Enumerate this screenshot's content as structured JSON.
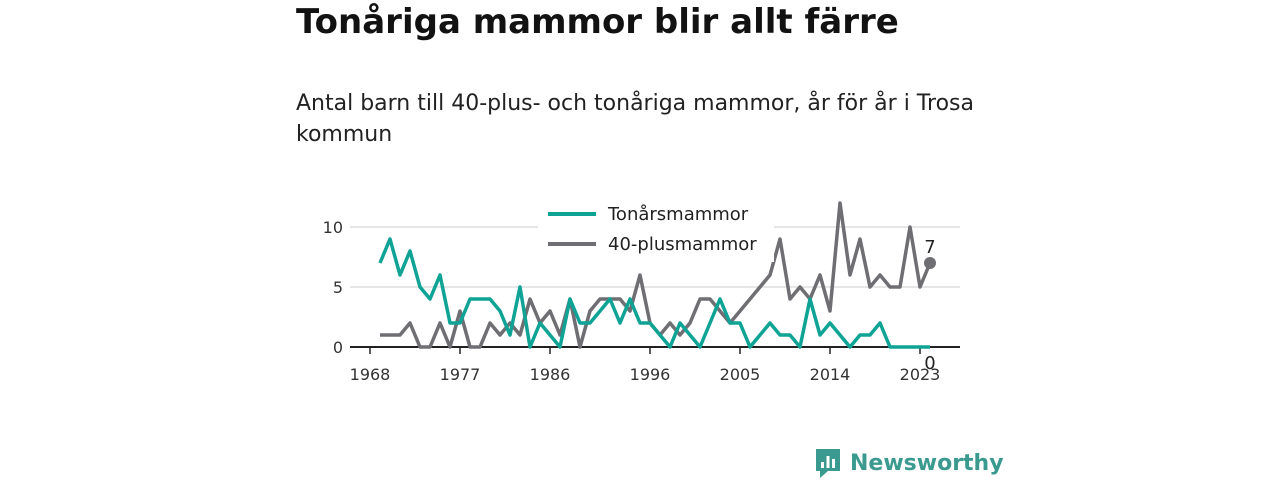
{
  "chart_data": {
    "type": "line",
    "title": "Tonåriga mammor blir allt färre",
    "subtitle": "Antal barn till 40-plus- och tonåriga mammor, år för år i Trosa kommun",
    "xlabel": "",
    "ylabel": "",
    "x": [
      1969,
      1970,
      1971,
      1972,
      1973,
      1974,
      1975,
      1976,
      1977,
      1978,
      1979,
      1980,
      1981,
      1982,
      1983,
      1984,
      1985,
      1986,
      1987,
      1988,
      1989,
      1990,
      1991,
      1992,
      1993,
      1994,
      1995,
      1996,
      1997,
      1998,
      1999,
      2000,
      2001,
      2002,
      2003,
      2004,
      2005,
      2006,
      2007,
      2008,
      2009,
      2010,
      2011,
      2012,
      2013,
      2014,
      2015,
      2016,
      2017,
      2018,
      2019,
      2020,
      2021,
      2022,
      2023,
      2024
    ],
    "series": [
      {
        "name": "Tonårsmammor",
        "color": "#0fa396",
        "values": [
          7,
          9,
          6,
          8,
          5,
          4,
          6,
          2,
          2,
          4,
          4,
          4,
          3,
          1,
          5,
          0,
          2,
          1,
          0,
          4,
          2,
          2,
          3,
          4,
          2,
          4,
          2,
          2,
          1,
          0,
          2,
          1,
          0,
          2,
          4,
          2,
          2,
          0,
          1,
          2,
          1,
          1,
          0,
          4,
          1,
          2,
          1,
          0,
          1,
          1,
          2,
          0,
          0,
          0,
          0,
          0
        ]
      },
      {
        "name": "40-plusmammor",
        "color": "#6e6e73",
        "values": [
          1,
          1,
          1,
          2,
          0,
          0,
          2,
          0,
          3,
          0,
          0,
          2,
          1,
          2,
          1,
          4,
          2,
          3,
          1,
          4,
          0,
          3,
          4,
          4,
          4,
          3,
          6,
          2,
          1,
          2,
          1,
          2,
          4,
          4,
          3,
          2,
          3,
          4,
          5,
          6,
          9,
          4,
          5,
          4,
          6,
          3,
          12,
          6,
          9,
          5,
          6,
          5,
          5,
          10,
          5,
          7
        ]
      }
    ],
    "ylim": [
      0,
      12
    ],
    "yticks": [
      0,
      5,
      10
    ],
    "xticks": [
      1968,
      1977,
      1986,
      1996,
      2005,
      2014,
      2023
    ],
    "end_labels": {
      "Tonårsmammor": "0",
      "40-plusmammor": "7"
    },
    "legend": "top-center",
    "grid": "horizontal"
  },
  "brand": {
    "name": "Newsworthy",
    "color": "#3a9a8f"
  }
}
